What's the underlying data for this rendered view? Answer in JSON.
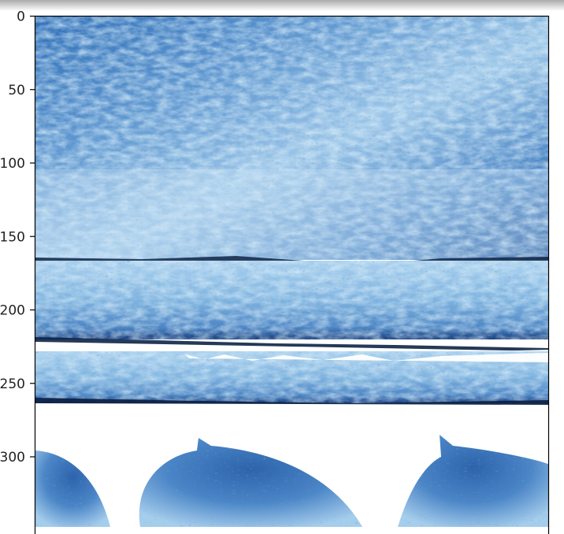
{
  "chart_data": {
    "type": "heatmap",
    "title": "",
    "xlabel": "",
    "ylabel": "",
    "ylim": [
      0,
      346
    ],
    "y_ticks": [
      0,
      50,
      100,
      150,
      200,
      250,
      300
    ],
    "y_tick_labels": [
      "0",
      "50",
      "100",
      "150",
      "200",
      "250",
      "300"
    ],
    "image": {
      "description": "imshow of stacked blue-tinted bread slice textures",
      "bands": [
        {
          "kind": "texture",
          "from": 0,
          "to": 166
        },
        {
          "kind": "gap",
          "from": 166,
          "to": 178
        },
        {
          "kind": "texture",
          "from": 166,
          "to": 222
        },
        {
          "kind": "gap",
          "from": 222,
          "to": 236
        },
        {
          "kind": "texture",
          "from": 222,
          "to": 266
        },
        {
          "kind": "white",
          "from": 266,
          "to": 300
        },
        {
          "kind": "texture-lobes",
          "from": 285,
          "to": 346
        }
      ],
      "colormap": [
        "#1e4f96",
        "#3a78bd",
        "#7db4de",
        "#c6e2f4",
        "#ffffff"
      ],
      "grid": false
    }
  },
  "colors": {
    "axes": "#000000",
    "deep_blue": "#1d4b8f",
    "mid_blue": "#3f7cc0",
    "light_blue": "#9fcbea",
    "pale_blue": "#d6ecf8",
    "crust": "#0d2346"
  }
}
